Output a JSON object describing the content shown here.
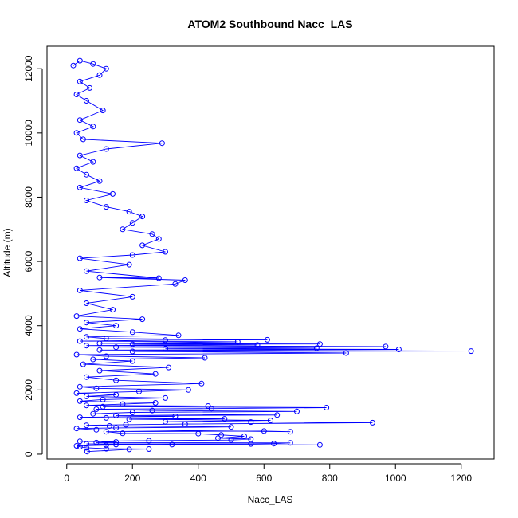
{
  "chart_data": {
    "type": "scatter",
    "title": "ATOM2 Southbound Nacc_LAS",
    "xlabel": "Nacc_LAS",
    "ylabel": "Altitude (m)",
    "xlim": [
      -60,
      1300
    ],
    "ylim": [
      -150,
      12700
    ],
    "xticks": [
      0,
      200,
      400,
      600,
      800,
      1000,
      1200
    ],
    "yticks": [
      0,
      2000,
      4000,
      6000,
      8000,
      10000,
      12000
    ],
    "grid": false,
    "legend": "none",
    "marker": "open-circle",
    "connected": true,
    "color": "#0000ff",
    "series": [
      {
        "values": [
          [
            62,
            80
          ],
          [
            190,
            150
          ],
          [
            250,
            160
          ],
          [
            120,
            170
          ],
          [
            60,
            200
          ],
          [
            40,
            230
          ],
          [
            30,
            260
          ],
          [
            120,
            280
          ],
          [
            320,
            300
          ],
          [
            770,
            290
          ],
          [
            150,
            300
          ],
          [
            60,
            320
          ],
          [
            560,
            320
          ],
          [
            630,
            330
          ],
          [
            680,
            350
          ],
          [
            90,
            360
          ],
          [
            150,
            380
          ],
          [
            40,
            400
          ],
          [
            250,
            420
          ],
          [
            500,
            440
          ],
          [
            560,
            470
          ],
          [
            460,
            500
          ],
          [
            540,
            560
          ],
          [
            470,
            600
          ],
          [
            400,
            640
          ],
          [
            170,
            650
          ],
          [
            120,
            700
          ],
          [
            600,
            720
          ],
          [
            680,
            700
          ],
          [
            90,
            760
          ],
          [
            30,
            800
          ],
          [
            150,
            820
          ],
          [
            500,
            850
          ],
          [
            130,
            880
          ],
          [
            60,
            900
          ],
          [
            180,
            920
          ],
          [
            360,
            940
          ],
          [
            930,
            980
          ],
          [
            560,
            1000
          ],
          [
            300,
            1010
          ],
          [
            620,
            1050
          ],
          [
            190,
            1090
          ],
          [
            480,
            1100
          ],
          [
            120,
            1130
          ],
          [
            40,
            1150
          ],
          [
            330,
            1180
          ],
          [
            150,
            1200
          ],
          [
            640,
            1220
          ],
          [
            80,
            1260
          ],
          [
            200,
            1300
          ],
          [
            700,
            1330
          ],
          [
            260,
            1360
          ],
          [
            90,
            1400
          ],
          [
            440,
            1420
          ],
          [
            790,
            1450
          ],
          [
            110,
            1480
          ],
          [
            430,
            1500
          ],
          [
            60,
            1520
          ],
          [
            170,
            1560
          ],
          [
            270,
            1600
          ],
          [
            40,
            1650
          ],
          [
            110,
            1700
          ],
          [
            300,
            1750
          ],
          [
            60,
            1800
          ],
          [
            150,
            1850
          ],
          [
            30,
            1900
          ],
          [
            220,
            1950
          ],
          [
            370,
            2000
          ],
          [
            90,
            2050
          ],
          [
            40,
            2100
          ],
          [
            410,
            2200
          ],
          [
            150,
            2300
          ],
          [
            60,
            2400
          ],
          [
            270,
            2500
          ],
          [
            100,
            2600
          ],
          [
            310,
            2700
          ],
          [
            50,
            2800
          ],
          [
            200,
            2900
          ],
          [
            80,
            2950
          ],
          [
            420,
            3000
          ],
          [
            120,
            3050
          ],
          [
            30,
            3100
          ],
          [
            850,
            3150
          ],
          [
            200,
            3200
          ],
          [
            1230,
            3210
          ],
          [
            100,
            3240
          ],
          [
            1010,
            3260
          ],
          [
            300,
            3280
          ],
          [
            760,
            3300
          ],
          [
            150,
            3330
          ],
          [
            970,
            3350
          ],
          [
            60,
            3380
          ],
          [
            580,
            3400
          ],
          [
            200,
            3420
          ],
          [
            770,
            3430
          ],
          [
            100,
            3450
          ],
          [
            520,
            3500
          ],
          [
            40,
            3520
          ],
          [
            300,
            3550
          ],
          [
            610,
            3560
          ],
          [
            120,
            3600
          ],
          [
            60,
            3650
          ],
          [
            340,
            3700
          ],
          [
            200,
            3800
          ],
          [
            40,
            3900
          ],
          [
            150,
            4000
          ],
          [
            60,
            4100
          ],
          [
            230,
            4200
          ],
          [
            30,
            4300
          ],
          [
            140,
            4500
          ],
          [
            60,
            4700
          ],
          [
            200,
            4900
          ],
          [
            40,
            5100
          ],
          [
            330,
            5300
          ],
          [
            360,
            5420
          ],
          [
            100,
            5500
          ],
          [
            280,
            5480
          ],
          [
            60,
            5700
          ],
          [
            190,
            5900
          ],
          [
            40,
            6100
          ],
          [
            200,
            6200
          ],
          [
            300,
            6300
          ],
          [
            230,
            6500
          ],
          [
            280,
            6700
          ],
          [
            260,
            6850
          ],
          [
            170,
            7000
          ],
          [
            200,
            7200
          ],
          [
            230,
            7400
          ],
          [
            190,
            7550
          ],
          [
            120,
            7700
          ],
          [
            60,
            7900
          ],
          [
            140,
            8100
          ],
          [
            40,
            8300
          ],
          [
            100,
            8500
          ],
          [
            60,
            8700
          ],
          [
            30,
            8900
          ],
          [
            80,
            9100
          ],
          [
            40,
            9300
          ],
          [
            120,
            9500
          ],
          [
            290,
            9680
          ],
          [
            50,
            9800
          ],
          [
            30,
            10000
          ],
          [
            80,
            10200
          ],
          [
            40,
            10400
          ],
          [
            110,
            10700
          ],
          [
            60,
            11000
          ],
          [
            30,
            11200
          ],
          [
            70,
            11400
          ],
          [
            40,
            11600
          ],
          [
            100,
            11800
          ],
          [
            120,
            12000
          ],
          [
            80,
            12150
          ],
          [
            40,
            12250
          ],
          [
            20,
            12100
          ]
        ]
      }
    ]
  }
}
